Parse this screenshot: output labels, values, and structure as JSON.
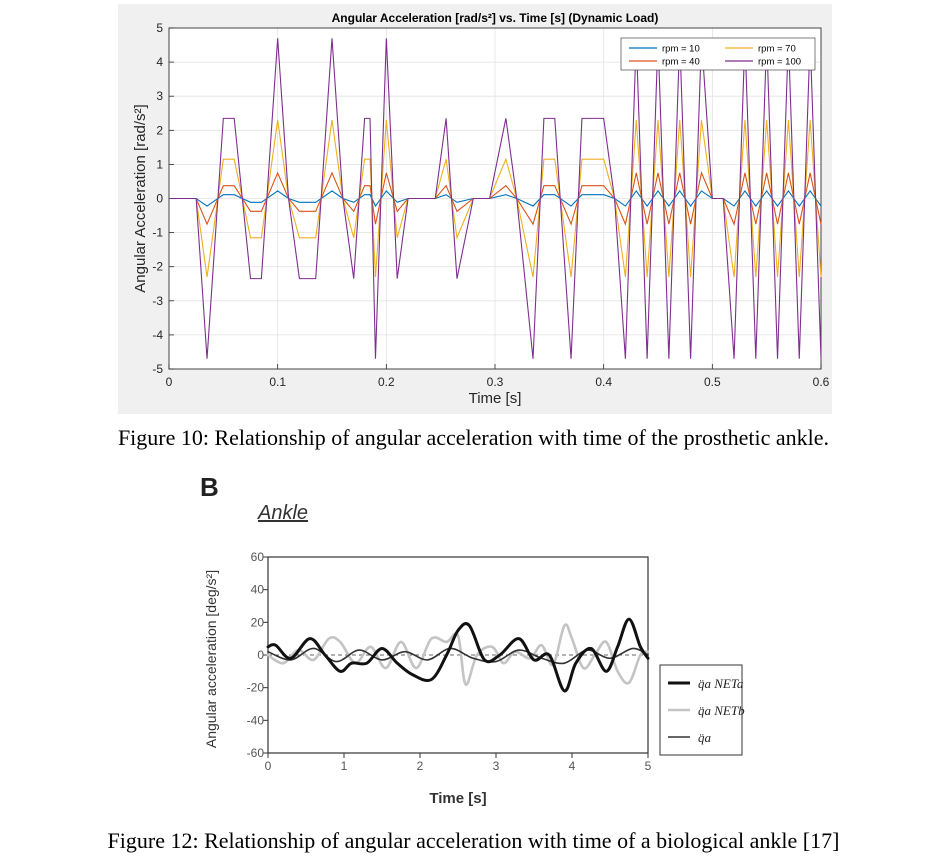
{
  "captions": {
    "fig10": "Figure 10: Relationship of angular acceleration with time of the prosthetic ankle.",
    "fig12": "Figure 12: Relationship of angular acceleration with time of a biological ankle [17]"
  },
  "panel_b": {
    "letter": "B",
    "subtitle": "Ankle"
  },
  "chart_data": [
    {
      "type": "line",
      "title": "Angular Acceleration [rad/s²] vs. Time [s] (Dynamic Load)",
      "xlabel": "Time [s]",
      "ylabel": "Angular Acceleration [rad/s²]",
      "xlim": [
        0,
        0.6
      ],
      "ylim": [
        -5,
        5
      ],
      "xticks": [
        "0",
        "0.1",
        "0.2",
        "0.3",
        "0.4",
        "0.5",
        "0.6"
      ],
      "yticks": [
        "-5",
        "-4",
        "-3",
        "-2",
        "-1",
        "0",
        "1",
        "2",
        "3",
        "4",
        "5"
      ],
      "grid": true,
      "legend_position": "top-right",
      "series": [
        {
          "name": "rpm = 10",
          "color": "#0072BD",
          "scale": 0.047
        },
        {
          "name": "rpm = 40",
          "color": "#D95319",
          "scale": 0.16
        },
        {
          "name": "rpm = 70",
          "color": "#EDB120",
          "scale": 0.49
        },
        {
          "name": "rpm = 100",
          "color": "#7E2F8E",
          "scale": 1.0
        }
      ],
      "base_profile": {
        "x": [
          0,
          0.025,
          0.035,
          0.05,
          0.06,
          0.075,
          0.085,
          0.1,
          0.11,
          0.12,
          0.135,
          0.15,
          0.16,
          0.17,
          0.18,
          0.185,
          0.19,
          0.2,
          0.21,
          0.22,
          0.245,
          0.255,
          0.265,
          0.28,
          0.295,
          0.31,
          0.32,
          0.335,
          0.345,
          0.355,
          0.37,
          0.38,
          0.39,
          0.4,
          0.41,
          0.42,
          0.43,
          0.44,
          0.45,
          0.46,
          0.47,
          0.48,
          0.49,
          0.5,
          0.51,
          0.52,
          0.53,
          0.54,
          0.55,
          0.56,
          0.57,
          0.58,
          0.59,
          0.6
        ],
        "y": [
          0,
          0,
          -4.7,
          2.35,
          2.35,
          -2.35,
          -2.35,
          4.7,
          0,
          -2.35,
          -2.35,
          4.7,
          0,
          -2.35,
          2.35,
          2.35,
          -4.7,
          4.7,
          -2.35,
          0,
          0,
          2.35,
          -2.35,
          0,
          0,
          2.35,
          0,
          -4.7,
          2.35,
          2.35,
          -4.7,
          2.35,
          2.35,
          2.35,
          0,
          -4.7,
          4.7,
          -4.7,
          4.7,
          -4.7,
          4.7,
          -4.7,
          4.7,
          0,
          0,
          -4.7,
          4.7,
          -4.7,
          4.7,
          -4.7,
          4.7,
          -4.7,
          4.7,
          -4.7
        ]
      }
    },
    {
      "type": "line",
      "title": "",
      "xlabel": "Time [s]",
      "ylabel": "Angular acceleration [deg/s²]",
      "xlim": [
        0,
        5
      ],
      "ylim": [
        -60,
        60
      ],
      "xticks": [
        "0",
        "1",
        "2",
        "3",
        "4",
        "5"
      ],
      "yticks": [
        "60",
        "40",
        "20",
        "0",
        "-20",
        "-40",
        "-60"
      ],
      "grid": false,
      "legend_position": "right",
      "series": [
        {
          "name": "q̈a NETa",
          "color": "#111111",
          "x": [
            0,
            0.1,
            0.3,
            0.55,
            0.75,
            0.95,
            1.1,
            1.3,
            1.5,
            1.7,
            1.9,
            2.15,
            2.35,
            2.5,
            2.65,
            2.85,
            3.05,
            3.3,
            3.5,
            3.7,
            3.9,
            4.05,
            4.25,
            4.45,
            4.6,
            4.75,
            4.9,
            5.0
          ],
          "y": [
            5,
            6,
            -2,
            10,
            0,
            -10,
            -5,
            -5,
            4,
            -5,
            -12,
            -15,
            0,
            15,
            18,
            -3,
            0,
            10,
            -3,
            0,
            -22,
            -5,
            4,
            -10,
            5,
            22,
            5,
            -2
          ]
        },
        {
          "name": "q̈a NETb",
          "color": "#c4c4c4",
          "x": [
            0,
            0.2,
            0.4,
            0.6,
            0.8,
            0.95,
            1.15,
            1.35,
            1.55,
            1.75,
            1.95,
            2.15,
            2.35,
            2.5,
            2.6,
            2.75,
            2.95,
            3.1,
            3.25,
            3.45,
            3.6,
            3.75,
            3.9,
            4.0,
            4.15,
            4.3,
            4.45,
            4.6,
            4.75,
            4.9,
            5.0
          ],
          "y": [
            0,
            -5,
            3,
            -3,
            10,
            8,
            -5,
            5,
            -8,
            8,
            -8,
            10,
            8,
            12,
            -18,
            0,
            5,
            -5,
            2,
            -2,
            6,
            -6,
            18,
            10,
            -8,
            0,
            8,
            -10,
            -17,
            0,
            2
          ]
        },
        {
          "name": "q̈a",
          "color": "#333333",
          "x": [
            0,
            0.3,
            0.6,
            0.9,
            1.2,
            1.5,
            1.8,
            2.1,
            2.4,
            2.7,
            3.0,
            3.3,
            3.6,
            3.9,
            4.2,
            4.5,
            4.8,
            5.0
          ],
          "y": [
            2,
            -3,
            4,
            -4,
            3,
            -3,
            2,
            -3,
            4,
            -2,
            -4,
            3,
            -2,
            -5,
            3,
            -2,
            4,
            0
          ]
        }
      ]
    }
  ]
}
